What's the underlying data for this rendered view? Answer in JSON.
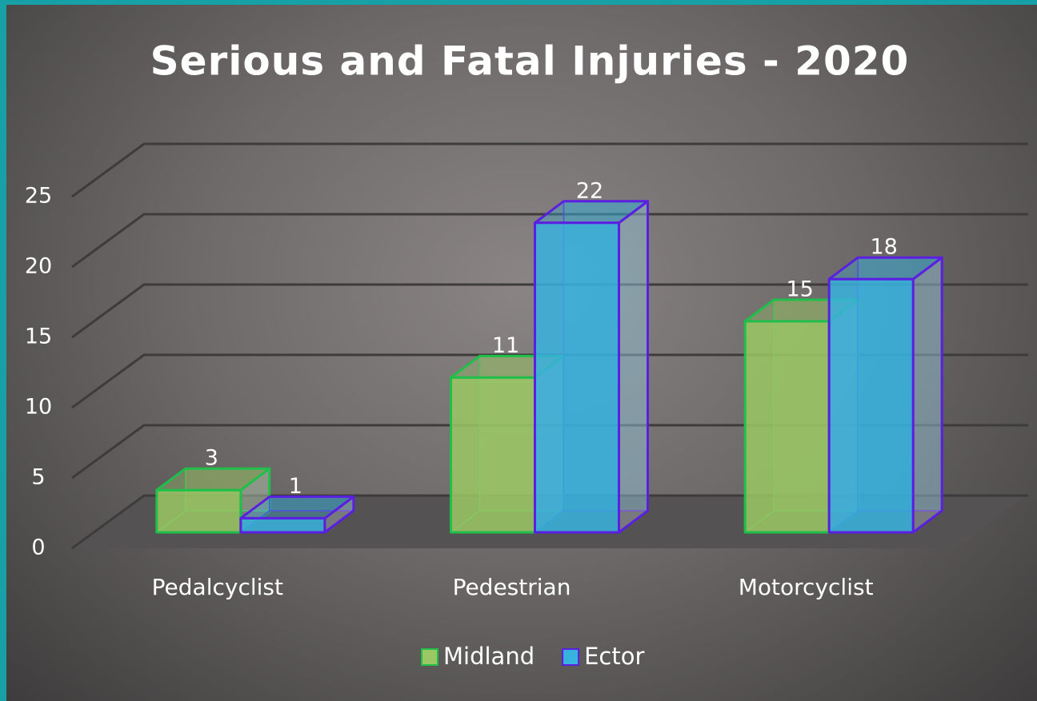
{
  "chart_data": {
    "type": "bar3d",
    "title": "Serious and Fatal Injuries - 2020",
    "categories": [
      "Pedalcyclist",
      "Pedestrian",
      "Motorcyclist"
    ],
    "series": [
      {
        "name": "Midland",
        "color": "#9bc865",
        "edgecolor": "#1fbf4a",
        "values": [
          3,
          11,
          15
        ]
      },
      {
        "name": "Ector",
        "color": "#38b2de",
        "edgecolor": "#5a1fe0",
        "values": [
          1,
          22,
          18
        ]
      }
    ],
    "ylim": [
      0,
      25
    ],
    "yticks": [
      0,
      5,
      10,
      15,
      20,
      25
    ],
    "grid": true,
    "legend": "bottom"
  }
}
